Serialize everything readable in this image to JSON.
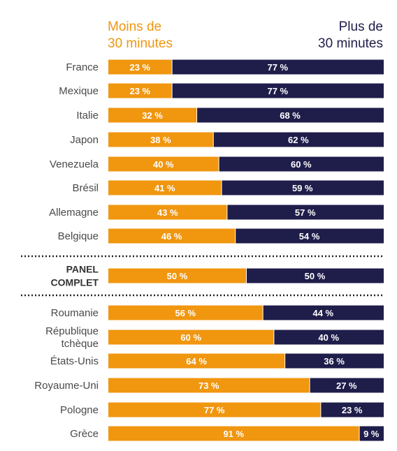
{
  "legend": {
    "left_line1": "Moins de",
    "left_line2": "30 minutes",
    "right_line1": "Plus de",
    "right_line2": "30 minutes"
  },
  "colors": {
    "under30": "#f0960f",
    "over30": "#1f1d4a",
    "separator": "#222222"
  },
  "chart_data": {
    "type": "bar",
    "orientation": "horizontal",
    "stacked": true,
    "percent": true,
    "xlim": [
      0,
      100
    ],
    "series": [
      {
        "name": "Moins de 30 minutes",
        "values": [
          23,
          23,
          32,
          38,
          40,
          41,
          43,
          46,
          50,
          56,
          60,
          64,
          73,
          77,
          91
        ]
      },
      {
        "name": "Plus de 30 minutes",
        "values": [
          77,
          77,
          68,
          62,
          60,
          59,
          57,
          54,
          50,
          44,
          40,
          36,
          27,
          23,
          9
        ]
      }
    ],
    "categories": [
      "France",
      "Mexique",
      "Italie",
      "Japon",
      "Venezuela",
      "Brésil",
      "Allemagne",
      "Belgique",
      "PANEL COMPLET",
      "Roumanie",
      "République tchèque",
      "États-Unis",
      "Royaume-Uni",
      "Pologne",
      "Grèce"
    ],
    "category_lines": [
      [
        "France"
      ],
      [
        "Mexique"
      ],
      [
        "Italie"
      ],
      [
        "Japon"
      ],
      [
        "Venezuela"
      ],
      [
        "Brésil"
      ],
      [
        "Allemagne"
      ],
      [
        "Belgique"
      ],
      [
        "PANEL",
        "COMPLET"
      ],
      [
        "Roumanie"
      ],
      [
        "République",
        "tchèque"
      ],
      [
        "États-Unis"
      ],
      [
        "Royaume-Uni"
      ],
      [
        "Pologne"
      ],
      [
        "Grèce"
      ]
    ],
    "highlight_category": "PANEL COMPLET",
    "data_labels": [
      [
        "23 %",
        "77 %"
      ],
      [
        "23 %",
        "77 %"
      ],
      [
        "32 %",
        "68 %"
      ],
      [
        "38 %",
        "62 %"
      ],
      [
        "40 %",
        "60 %"
      ],
      [
        "41 %",
        "59 %"
      ],
      [
        "43 %",
        "57 %"
      ],
      [
        "46 %",
        "54 %"
      ],
      [
        "50 %",
        "50 %"
      ],
      [
        "56 %",
        "44 %"
      ],
      [
        "60 %",
        "40 %"
      ],
      [
        "64 %",
        "36 %"
      ],
      [
        "73 %",
        "27 %"
      ],
      [
        "77 %",
        "23 %"
      ],
      [
        "91 %",
        "9 %"
      ]
    ]
  }
}
